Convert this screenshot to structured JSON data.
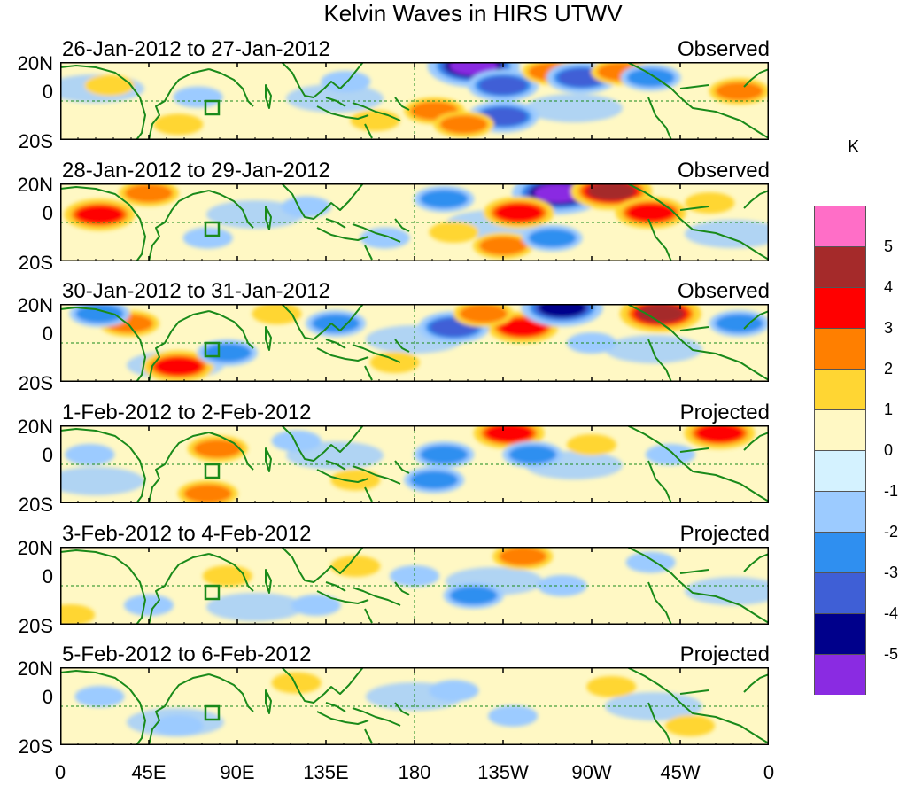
{
  "chart_data": {
    "type": "heatmap",
    "title": "Kelvin Waves in HIRS UTWV",
    "colorbar": {
      "unit": "K",
      "labels": [
        "5",
        "4",
        "3",
        "2",
        "1",
        "0",
        "-1",
        "-2",
        "-3",
        "-4",
        "-5"
      ],
      "colors": [
        "#ff6ec7",
        "#a52a2a",
        "#ff0000",
        "#ff7f00",
        "#ffd633",
        "#fff8c4",
        "#d4f2ff",
        "#9ccbff",
        "#2f8ff0",
        "#3f5fd6",
        "#00008b",
        "#8a2be2"
      ]
    },
    "x_ticks": [
      "0",
      "45E",
      "90E",
      "135E",
      "180",
      "135W",
      "90W",
      "45W",
      "0"
    ],
    "y_ticks": [
      "20N",
      "0",
      "20S"
    ],
    "panels": [
      {
        "period": "26-Jan-2012 to 27-Jan-2012",
        "status": "Observed",
        "anomalies": [
          {
            "lon": 210,
            "lat": 18,
            "k": -5
          },
          {
            "lon": 225,
            "lat": 8,
            "k": -3
          },
          {
            "lon": 225,
            "lat": -8,
            "k": -3
          },
          {
            "lon": 250,
            "lat": 15,
            "k": 2
          },
          {
            "lon": 265,
            "lat": 12,
            "k": -3
          },
          {
            "lon": 285,
            "lat": 15,
            "k": 2
          },
          {
            "lon": 300,
            "lat": 12,
            "k": -2
          },
          {
            "lon": 345,
            "lat": 5,
            "k": 2
          },
          {
            "lon": 190,
            "lat": -5,
            "k": 2
          },
          {
            "lon": 205,
            "lat": -12,
            "k": 2
          },
          {
            "lon": 25,
            "lat": 8,
            "k": 1
          },
          {
            "lon": 60,
            "lat": -12,
            "k": 1
          },
          {
            "lon": 70,
            "lat": 2,
            "k": -1
          },
          {
            "lon": 145,
            "lat": 10,
            "k": -1
          },
          {
            "lon": 160,
            "lat": -10,
            "k": 1
          }
        ]
      },
      {
        "period": "28-Jan-2012 to 29-Jan-2012",
        "status": "Observed",
        "anomalies": [
          {
            "lon": 253,
            "lat": 15,
            "k": -5
          },
          {
            "lon": 233,
            "lat": 5,
            "k": 3
          },
          {
            "lon": 225,
            "lat": -12,
            "k": 2
          },
          {
            "lon": 280,
            "lat": 16,
            "k": 4
          },
          {
            "lon": 300,
            "lat": 5,
            "k": 3
          },
          {
            "lon": 20,
            "lat": 4,
            "k": 3
          },
          {
            "lon": 45,
            "lat": 15,
            "k": 2
          },
          {
            "lon": 195,
            "lat": 12,
            "k": -2
          },
          {
            "lon": 200,
            "lat": -5,
            "k": 1
          },
          {
            "lon": 250,
            "lat": -8,
            "k": -2
          },
          {
            "lon": 330,
            "lat": 10,
            "k": 1
          },
          {
            "lon": 75,
            "lat": -8,
            "k": -1
          },
          {
            "lon": 125,
            "lat": 8,
            "k": -1
          },
          {
            "lon": 165,
            "lat": -8,
            "k": -1
          }
        ]
      },
      {
        "period": "30-Jan-2012 to 31-Jan-2012",
        "status": "Observed",
        "anomalies": [
          {
            "lon": 305,
            "lat": 15,
            "k": 4
          },
          {
            "lon": 235,
            "lat": 8,
            "k": 3
          },
          {
            "lon": 255,
            "lat": 18,
            "k": -4
          },
          {
            "lon": 140,
            "lat": 10,
            "k": -2
          },
          {
            "lon": 200,
            "lat": 8,
            "k": -3
          },
          {
            "lon": 215,
            "lat": 15,
            "k": 2
          },
          {
            "lon": 60,
            "lat": -12,
            "k": 3
          },
          {
            "lon": 35,
            "lat": 10,
            "k": 2
          },
          {
            "lon": 85,
            "lat": -5,
            "k": -2
          },
          {
            "lon": 20,
            "lat": 15,
            "k": -2
          },
          {
            "lon": 345,
            "lat": 10,
            "k": -2
          },
          {
            "lon": 110,
            "lat": 15,
            "k": 1
          },
          {
            "lon": 170,
            "lat": -10,
            "k": 1
          },
          {
            "lon": 270,
            "lat": 0,
            "k": -1
          }
        ]
      },
      {
        "period": "1-Feb-2012 to 2-Feb-2012",
        "status": "Projected",
        "anomalies": [
          {
            "lon": 80,
            "lat": 8,
            "k": 2
          },
          {
            "lon": 228,
            "lat": 16,
            "k": 3
          },
          {
            "lon": 195,
            "lat": 5,
            "k": -2
          },
          {
            "lon": 190,
            "lat": -8,
            "k": -2
          },
          {
            "lon": 240,
            "lat": 5,
            "k": -2
          },
          {
            "lon": 270,
            "lat": 10,
            "k": 1
          },
          {
            "lon": 335,
            "lat": 16,
            "k": 3
          },
          {
            "lon": 75,
            "lat": -15,
            "k": 2
          },
          {
            "lon": 150,
            "lat": -8,
            "k": 1
          },
          {
            "lon": 310,
            "lat": 5,
            "k": -1
          },
          {
            "lon": 15,
            "lat": 5,
            "k": -1
          },
          {
            "lon": 120,
            "lat": 12,
            "k": -1
          }
        ]
      },
      {
        "period": "3-Feb-2012 to 4-Feb-2012",
        "status": "Projected",
        "anomalies": [
          {
            "lon": 85,
            "lat": 5,
            "k": 1
          },
          {
            "lon": 235,
            "lat": 15,
            "k": 2
          },
          {
            "lon": 210,
            "lat": -5,
            "k": -2
          },
          {
            "lon": 180,
            "lat": 5,
            "k": -1
          },
          {
            "lon": 255,
            "lat": 0,
            "k": -1
          },
          {
            "lon": 300,
            "lat": 12,
            "k": -1
          },
          {
            "lon": 130,
            "lat": -10,
            "k": -1
          },
          {
            "lon": 45,
            "lat": -10,
            "k": -1
          },
          {
            "lon": 150,
            "lat": 10,
            "k": 1
          },
          {
            "lon": 5,
            "lat": -15,
            "k": 1
          }
        ]
      },
      {
        "period": "5-Feb-2012 to 6-Feb-2012",
        "status": "Projected",
        "anomalies": [
          {
            "lon": 120,
            "lat": 12,
            "k": 1
          },
          {
            "lon": 200,
            "lat": 8,
            "k": -1
          },
          {
            "lon": 230,
            "lat": -5,
            "k": -1
          },
          {
            "lon": 60,
            "lat": -10,
            "k": -1
          },
          {
            "lon": 280,
            "lat": 10,
            "k": 1
          },
          {
            "lon": 20,
            "lat": 5,
            "k": -1
          },
          {
            "lon": 320,
            "lat": -10,
            "k": 1
          }
        ]
      }
    ]
  }
}
